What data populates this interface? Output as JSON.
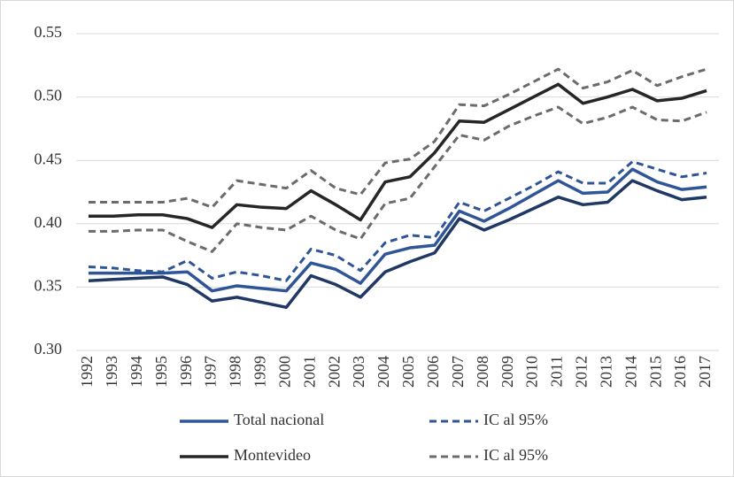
{
  "chart_data": {
    "type": "line",
    "categories": [
      "1992",
      "1993",
      "1994",
      "1995",
      "1996",
      "1997",
      "1998",
      "1999",
      "2000",
      "2001",
      "2002",
      "2003",
      "2004",
      "2005",
      "2006",
      "2007",
      "2008",
      "2009",
      "2010",
      "2011",
      "2012",
      "2013",
      "2014",
      "2015",
      "2016",
      "2017"
    ],
    "series": [
      {
        "name": "Total nacional",
        "color": "#2f5597",
        "dash": false,
        "values": [
          0.361,
          0.361,
          0.361,
          0.361,
          0.362,
          0.347,
          0.351,
          0.349,
          0.347,
          0.369,
          0.364,
          0.353,
          0.376,
          0.381,
          0.383,
          0.41,
          0.402,
          0.412,
          0.423,
          0.434,
          0.424,
          0.425,
          0.443,
          0.433,
          0.427,
          0.429
        ]
      },
      {
        "name": "IC al 95%",
        "color": "#2f5597",
        "dash": true,
        "values": [
          0.366,
          0.365,
          0.363,
          0.362,
          0.371,
          0.357,
          0.362,
          0.359,
          0.355,
          0.38,
          0.375,
          0.363,
          0.385,
          0.391,
          0.389,
          0.417,
          0.41,
          0.42,
          0.43,
          0.441,
          0.432,
          0.432,
          0.449,
          0.443,
          0.437,
          0.44
        ],
        "lower_color": "#1f3864",
        "lower_dash": false,
        "values_lower": [
          0.355,
          0.356,
          0.357,
          0.358,
          0.352,
          0.339,
          0.342,
          0.338,
          0.334,
          0.359,
          0.352,
          0.342,
          0.362,
          0.37,
          0.377,
          0.404,
          0.395,
          0.403,
          0.412,
          0.421,
          0.415,
          0.417,
          0.434,
          0.426,
          0.419,
          0.421
        ]
      },
      {
        "name": "Montevideo",
        "color": "#262626",
        "dash": false,
        "values": [
          0.406,
          0.406,
          0.407,
          0.407,
          0.404,
          0.397,
          0.415,
          0.413,
          0.412,
          0.426,
          0.415,
          0.403,
          0.433,
          0.437,
          0.456,
          0.481,
          0.48,
          0.49,
          0.5,
          0.51,
          0.495,
          0.5,
          0.506,
          0.497,
          0.499,
          0.505
        ]
      },
      {
        "name": "IC al 95%",
        "color": "#6b6b6b",
        "dash": true,
        "values": [
          0.417,
          0.417,
          0.417,
          0.417,
          0.42,
          0.413,
          0.434,
          0.431,
          0.428,
          0.442,
          0.428,
          0.423,
          0.448,
          0.451,
          0.465,
          0.494,
          0.493,
          0.502,
          0.512,
          0.522,
          0.507,
          0.512,
          0.521,
          0.509,
          0.516,
          0.522
        ],
        "lower_color": "#6b6b6b",
        "lower_dash": true,
        "values_lower": [
          0.394,
          0.394,
          0.395,
          0.395,
          0.386,
          0.378,
          0.4,
          0.397,
          0.395,
          0.406,
          0.395,
          0.388,
          0.416,
          0.42,
          0.445,
          0.47,
          0.466,
          0.477,
          0.485,
          0.492,
          0.479,
          0.484,
          0.492,
          0.482,
          0.481,
          0.488
        ]
      }
    ],
    "ylim": [
      0.3,
      0.55
    ],
    "yticks": [
      {
        "value": 0.3,
        "label": "0.30"
      },
      {
        "value": 0.35,
        "label": "0.35"
      },
      {
        "value": 0.4,
        "label": "0.40"
      },
      {
        "value": 0.45,
        "label": "0.45"
      },
      {
        "value": 0.5,
        "label": "0.50"
      },
      {
        "value": 0.55,
        "label": "0.55"
      }
    ],
    "grid": true,
    "legend": "bottom"
  }
}
